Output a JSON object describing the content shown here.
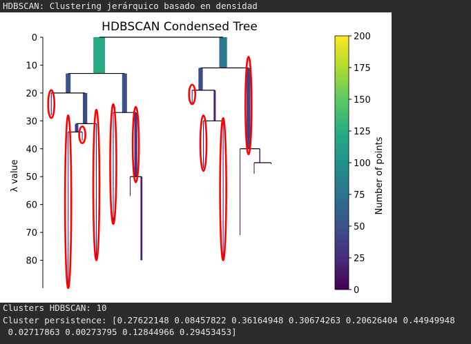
{
  "console": {
    "title_line": "HDBSCAN: Clustering jerárquico basado en densidad",
    "clusters_line": "Clusters HDBSCAN: 10",
    "persistence_line_1": "Cluster persistence: [0.27622148 0.08457822 0.36164948 0.30674263 0.20626404 0.44949948",
    "persistence_line_2": " 0.02717863 0.00273795 0.12844966 0.29453453]"
  },
  "chart_data": {
    "type": "condensed-tree",
    "title": "HDBSCAN Condensed Tree",
    "ylabel": "λ value",
    "ylim": [
      0,
      90
    ],
    "y_inverted": true,
    "yticks": [
      0,
      10,
      20,
      30,
      40,
      50,
      60,
      70,
      80
    ],
    "colorbar": {
      "label": "Number of points",
      "range": [
        0,
        200
      ],
      "ticks": [
        0,
        25,
        50,
        75,
        100,
        125,
        150,
        175,
        200
      ],
      "colormap": "viridis"
    },
    "branches": [
      {
        "x": 20,
        "y0": 0,
        "y1": 13,
        "points": 120
      },
      {
        "x": 64,
        "y0": 0,
        "y1": 11,
        "points": 80
      },
      {
        "x": 9,
        "y0": 13,
        "y1": 20,
        "points": 50
      },
      {
        "x": 29,
        "y0": 13,
        "y1": 27,
        "points": 50
      },
      {
        "x": 3,
        "y0": 20,
        "y1": 28,
        "points": 8
      },
      {
        "x": 15,
        "y0": 20,
        "y1": 31,
        "points": 45
      },
      {
        "x": 56,
        "y0": 11,
        "y1": 19,
        "points": 45
      },
      {
        "x": 73,
        "y0": 11,
        "y1": 40,
        "points": 40
      },
      {
        "x": 53,
        "y0": 19,
        "y1": 24,
        "points": 6
      },
      {
        "x": 61,
        "y0": 19,
        "y1": 30,
        "points": 22
      },
      {
        "x": 12,
        "y0": 31,
        "y1": 34,
        "points": 35
      },
      {
        "x": 19,
        "y0": 31,
        "y1": 79,
        "points": 3
      },
      {
        "x": 9,
        "y0": 34,
        "y1": 90,
        "points": 3
      },
      {
        "x": 14,
        "y0": 34,
        "y1": 37,
        "points": 6
      },
      {
        "x": 25,
        "y0": 27,
        "y1": 66,
        "points": 3
      },
      {
        "x": 33,
        "y0": 27,
        "y1": 50,
        "points": 30
      },
      {
        "x": 57,
        "y0": 30,
        "y1": 47,
        "points": 3
      },
      {
        "x": 64,
        "y0": 30,
        "y1": 79,
        "points": 3
      },
      {
        "x": 31,
        "y0": 50,
        "y1": 57,
        "points": 2
      },
      {
        "x": 35,
        "y0": 50,
        "y1": 80,
        "points": 20
      },
      {
        "x": 70,
        "y0": 40,
        "y1": 71,
        "points": 1
      },
      {
        "x": 77,
        "y0": 40,
        "y1": 45,
        "points": 10
      },
      {
        "x": 75,
        "y0": 45,
        "y1": 49,
        "points": 1
      },
      {
        "x": 81,
        "y0": 45,
        "y1": 45.5,
        "points": 2
      }
    ],
    "splits": [
      {
        "y": 0,
        "x0": 20,
        "x1": 64
      },
      {
        "y": 13,
        "x0": 9,
        "x1": 29
      },
      {
        "y": 20,
        "x0": 3,
        "x1": 15
      },
      {
        "y": 31,
        "x0": 12,
        "x1": 19
      },
      {
        "y": 34,
        "x0": 9,
        "x1": 14
      },
      {
        "y": 27,
        "x0": 25,
        "x1": 33
      },
      {
        "y": 11,
        "x0": 56,
        "x1": 73
      },
      {
        "y": 19,
        "x0": 53,
        "x1": 61
      },
      {
        "y": 30,
        "x0": 57,
        "x1": 64
      },
      {
        "y": 50,
        "x0": 31,
        "x1": 35
      },
      {
        "y": 40,
        "x0": 70,
        "x1": 77
      },
      {
        "y": 45,
        "x0": 75,
        "x1": 81
      }
    ],
    "selected_clusters": [
      {
        "x": 3,
        "y0": 19,
        "y1": 29
      },
      {
        "x": 9,
        "y0": 28,
        "y1": 90
      },
      {
        "x": 14,
        "y0": 32,
        "y1": 38
      },
      {
        "x": 19,
        "y0": 26,
        "y1": 80
      },
      {
        "x": 25,
        "y0": 24,
        "y1": 67
      },
      {
        "x": 33,
        "y0": 25,
        "y1": 52
      },
      {
        "x": 53,
        "y0": 17,
        "y1": 24
      },
      {
        "x": 57,
        "y0": 28,
        "y1": 48
      },
      {
        "x": 64,
        "y0": 29,
        "y1": 80
      },
      {
        "x": 73,
        "y0": 7,
        "y1": 42
      }
    ]
  }
}
